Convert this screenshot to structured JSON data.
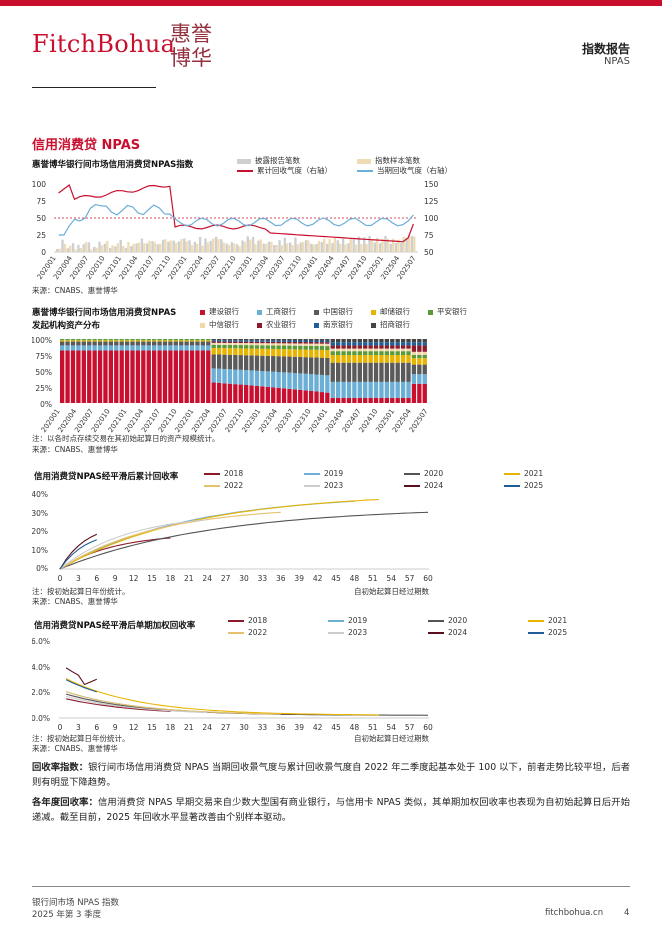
{
  "header": {
    "logo_text": "FitchBohua",
    "seal_text": "惠誉博华",
    "title": "指数报告",
    "subtitle": "NPAS"
  },
  "section_title": "信用消费贷 NPAS",
  "chart1": {
    "title": "惠誉博华银行间市场信用消费贷NPAS指数",
    "legend": [
      "披露报告笔数",
      "指数样本笔数",
      "累计回收气度（右轴）",
      "当期回收气度（右轴）"
    ],
    "source": "来源：CNABS、惠誉博华",
    "left_ticks": [
      "100",
      "75",
      "50",
      "25",
      "0"
    ],
    "right_ticks": [
      "150",
      "125",
      "100",
      "75",
      "50"
    ],
    "x_labels": [
      "202001",
      "202004",
      "202007",
      "202010",
      "202101",
      "202104",
      "202107",
      "202110",
      "202201",
      "202204",
      "202207",
      "202210",
      "202301",
      "202304",
      "202307",
      "202310",
      "202401",
      "202404",
      "202407",
      "202410",
      "202501",
      "202504",
      "202507"
    ]
  },
  "chart2": {
    "title_l1": "惠誉博华银行间市场信用消费贷NPAS",
    "title_l2": "发起机构资产分布",
    "legend": [
      "建设银行",
      "工商银行",
      "中国银行",
      "邮储银行",
      "平安银行",
      "中信银行",
      "农业银行",
      "南京银行",
      "招商银行"
    ],
    "colors": [
      "#c8102e",
      "#6baed6",
      "#5a5a5a",
      "#e8b400",
      "#5a9a3a",
      "#f2d6a8",
      "#8b1a2b",
      "#1f5f99",
      "#444444"
    ],
    "y_ticks": [
      "100%",
      "75%",
      "50%",
      "25%",
      "0%"
    ],
    "note": "注：以各时点存续交易在其初始起算日的资产规模统计。",
    "source": "来源：CNABS、惠誉博华"
  },
  "chart3": {
    "title": "信用消费贷NPAS经平滑后累计回收率",
    "legend": [
      "2018",
      "2019",
      "2020",
      "2021",
      "2022",
      "2023",
      "2024",
      "2025"
    ],
    "colors": [
      "#8b1a2b",
      "#6baed6",
      "#555555",
      "#e8b400",
      "#e6c26e",
      "#cccccc",
      "#5a0f1c",
      "#1f5f99"
    ],
    "y_ticks": [
      "40%",
      "30%",
      "20%",
      "10%",
      "0%"
    ],
    "x_ticks": [
      "0",
      "3",
      "6",
      "9",
      "12",
      "15",
      "18",
      "21",
      "24",
      "27",
      "30",
      "33",
      "36",
      "39",
      "42",
      "45",
      "48",
      "51",
      "54",
      "57",
      "60"
    ],
    "note": "注：按初始起算日年份统计。",
    "source": "来源：CNABS、惠誉博华",
    "xlabel": "自初始起算日经过期数"
  },
  "chart4": {
    "title": "信用消费贷NPAS经平滑后单期加权回收率",
    "legend": [
      "2018",
      "2019",
      "2020",
      "2021",
      "2022",
      "2023",
      "2024",
      "2025"
    ],
    "y_ticks": [
      "6.0%",
      "4.0%",
      "2.0%",
      "0.0%"
    ],
    "x_ticks": [
      "0",
      "3",
      "6",
      "9",
      "12",
      "15",
      "18",
      "21",
      "24",
      "27",
      "30",
      "33",
      "36",
      "39",
      "42",
      "45",
      "48",
      "51",
      "54",
      "57",
      "60"
    ],
    "note": "注：按初始起算日年份统计。",
    "source": "来源：CNABS、惠誉博华",
    "xlabel": "自初始起算日经过期数"
  },
  "para1": {
    "label": "回收率指数：",
    "text": "银行间市场信用消费贷 NPAS 当期回收景气度与累计回收景气度自 2022 年二季度起基本处于 100 以下，前者走势比较平坦，后者则有明显下降趋势。"
  },
  "para2": {
    "label": "各年度回收率：",
    "text": "信用消费贷 NPAS 早期交易来自少数大型国有商业银行，与信用卡 NPAS 类似，其单期加权回收率也表现为自初始起算日后开始递减。截至目前，2025 年回收水平显著改善由个别样本驱动。"
  },
  "footer": {
    "left1": "银行间市场 NPAS 指数",
    "left2": "2025 年第 3 季度",
    "site": "fitchbohua.cn",
    "page": "4"
  }
}
